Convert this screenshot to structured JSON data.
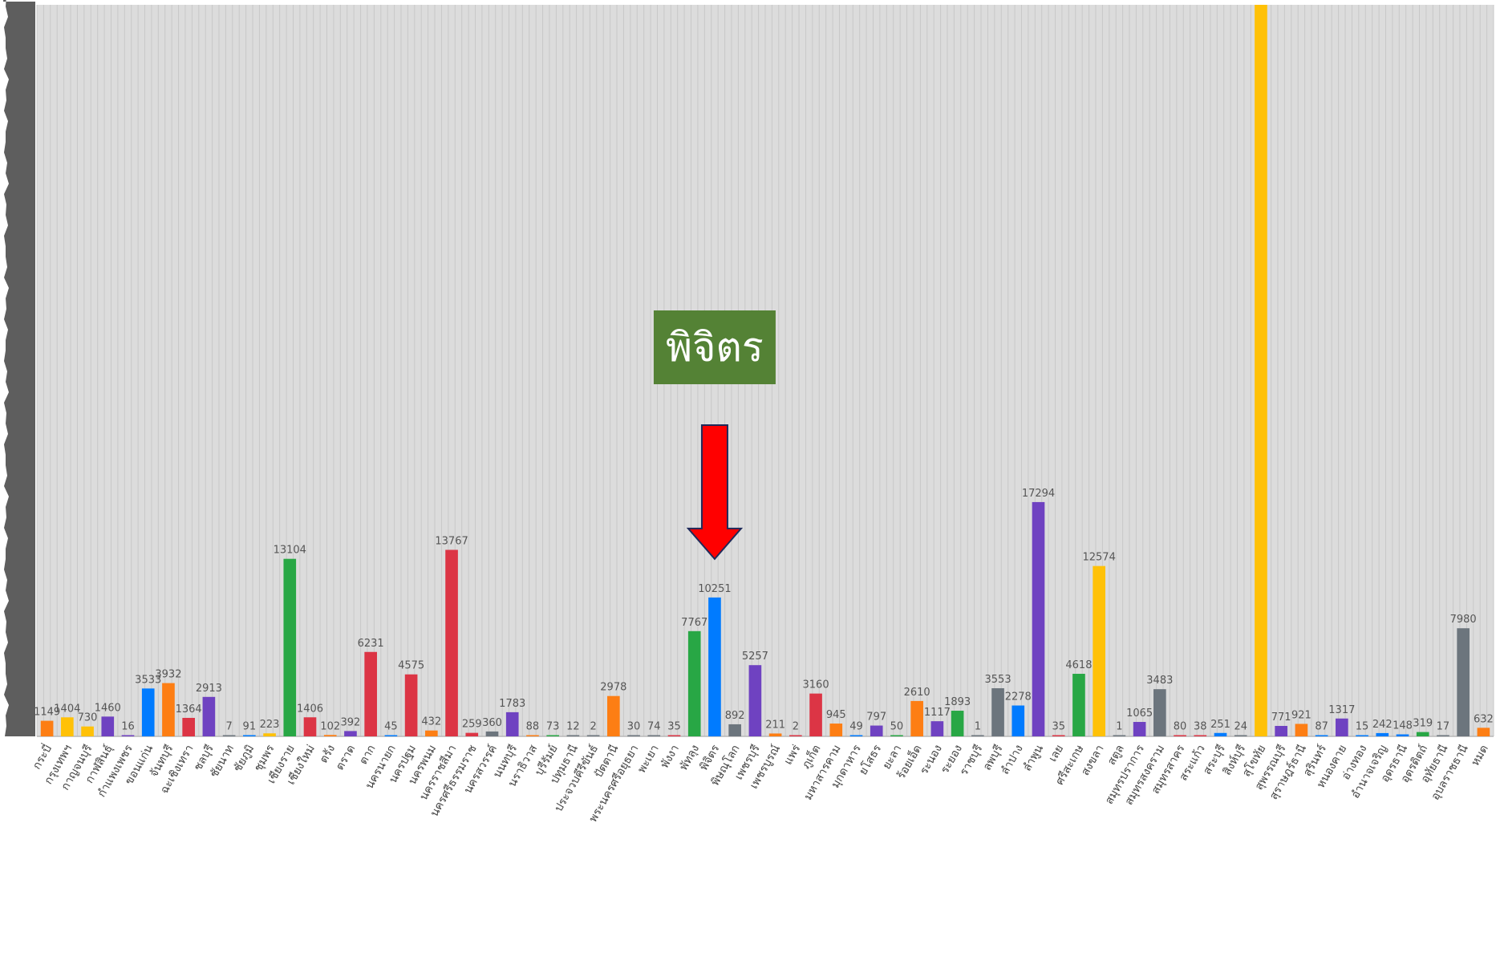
{
  "chart_data": {
    "type": "bar",
    "grid": true,
    "ylim": [
      0,
      54000
    ],
    "categories": [
      "กระบี่",
      "กรุงเทพฯ",
      "กาญจนบุรี",
      "กาฬสินธุ์",
      "กำแพงเพชร",
      "ขอนแก่น",
      "จันทบุรี",
      "ฉะเชิงเทรา",
      "ชลบุรี",
      "ชัยนาท",
      "ชัยภูมิ",
      "ชุมพร",
      "เชียงราย",
      "เชียงใหม่",
      "ตรัง",
      "ตราด",
      "ตาก",
      "นครนายก",
      "นครปฐม",
      "นครพนม",
      "นครราชสีมา",
      "นครศรีธรรมราช",
      "นครสวรรค์",
      "นนทบุรี",
      "นราธิวาส",
      "บุรีรัมย์",
      "ปทุมธานี",
      "ประจวบคีรีขันธ์",
      "ปัตตานี",
      "พระนครศรีอยุธยา",
      "พะเยา",
      "พังงา",
      "พัทลุง",
      "พิจิตร",
      "พิษณุโลก",
      "เพชรบุรี",
      "เพชรบูรณ์",
      "แพร่",
      "ภูเก็ต",
      "มหาสารคาม",
      "มุกดาหาร",
      "ยโสธร",
      "ยะลา",
      "ร้อยเอ็ด",
      "ระนอง",
      "ระยอง",
      "ราชบุรี",
      "ลพบุรี",
      "ลำปาง",
      "ลำพูน",
      "เลย",
      "ศรีสะเกษ",
      "สงขลา",
      "สตูล",
      "สมุทรปราการ",
      "สมุทรสงคราม",
      "สมุทรสาคร",
      "สระแก้ว",
      "สระบุรี",
      "สิงห์บุรี",
      "สุโขทัย",
      "สุพรรณบุรี",
      "สุราษฎร์ธานี",
      "สุรินทร์",
      "หนองคาย",
      "อ่างทอง",
      "อำนาจเจริญ",
      "อุดรธานี",
      "อุตรดิตถ์",
      "อุทัยธานี",
      "อุบลราชธานี",
      "หมด"
    ],
    "values": [
      1149,
      1404,
      730,
      1460,
      16,
      3533,
      3932,
      1364,
      2913,
      7,
      91,
      223,
      13104,
      1406,
      102,
      392,
      6231,
      45,
      4575,
      432,
      13767,
      259,
      360,
      1783,
      88,
      73,
      12,
      2,
      2978,
      30,
      74,
      35,
      7767,
      10251,
      892,
      5257,
      211,
      2,
      3160,
      945,
      49,
      797,
      50,
      2610,
      1117,
      1893,
      1,
      3553,
      2278,
      17294,
      35,
      4618,
      12574,
      1,
      1065,
      3483,
      80,
      38,
      251,
      24,
      54000,
      771,
      921,
      87,
      1317,
      15,
      242,
      148,
      319,
      17,
      7980,
      632
    ],
    "value_labels": [
      "1149",
      "1404",
      "730",
      "1460",
      "16",
      "3533",
      "3932",
      "1364",
      "2913",
      "7",
      "91",
      "223",
      "13104",
      "1406",
      "102",
      "392",
      "6231",
      "45",
      "4575",
      "432",
      "13767",
      "259",
      "360",
      "1783",
      "88",
      "73",
      "12",
      "2",
      "2978",
      "30",
      "74",
      "35",
      "7767",
      "10251",
      "892",
      "5257",
      "211",
      "2",
      "3160",
      "945",
      "49",
      "797",
      "50",
      "2610",
      "1117",
      "1893",
      "1",
      "3553",
      "2278",
      "17294",
      "35",
      "4618",
      "12574",
      "1",
      "1065",
      "3483",
      "80",
      "38",
      "251",
      "24",
      "",
      "771",
      "921",
      "87",
      "1317",
      "15",
      "242",
      "148",
      "319",
      "17",
      "7980",
      "632"
    ],
    "colors": [
      "#fd7e14",
      "#ffc107",
      "#ffc107",
      "#6f42c1",
      "#6f42c1",
      "#007bff",
      "#fd7e14",
      "#dc3545",
      "#6f42c1",
      "#6c757d",
      "#007bff",
      "#ffc107",
      "#28a745",
      "#dc3545",
      "#fd7e14",
      "#6f42c1",
      "#dc3545",
      "#007bff",
      "#dc3545",
      "#fd7e14",
      "#dc3545",
      "#dc3545",
      "#6c757d",
      "#6f42c1",
      "#fd7e14",
      "#28a745",
      "#6c757d",
      "#6c757d",
      "#fd7e14",
      "#6c757d",
      "#6c757d",
      "#dc3545",
      "#28a745",
      "#007bff",
      "#6c757d",
      "#6f42c1",
      "#fd7e14",
      "#dc3545",
      "#dc3545",
      "#fd7e14",
      "#007bff",
      "#6f42c1",
      "#28a745",
      "#fd7e14",
      "#6f42c1",
      "#28a745",
      "#6c757d",
      "#6c757d",
      "#007bff",
      "#6f42c1",
      "#dc3545",
      "#28a745",
      "#ffc107",
      "#6c757d",
      "#6f42c1",
      "#6c757d",
      "#dc3545",
      "#dc3545",
      "#007bff",
      "#6c757d",
      "#ffc107",
      "#6f42c1",
      "#fd7e14",
      "#007bff",
      "#6f42c1",
      "#007bff",
      "#007bff",
      "#007bff",
      "#28a745",
      "#6c757d",
      "#6c757d",
      "#fd7e14"
    ],
    "annotation": {
      "text": "พิจิตร",
      "target_category": "พิจิตร",
      "box_color": "#548235",
      "text_color": "#ffffff",
      "arrow_color": "#ff0000",
      "arrow_outline": "#1f2a5a"
    }
  },
  "style": {
    "background": "#ffffff",
    "plot_background": "#dcdcdc",
    "grid_color": "#c8c8c8",
    "left_bar_color": "#5e5e5e"
  }
}
